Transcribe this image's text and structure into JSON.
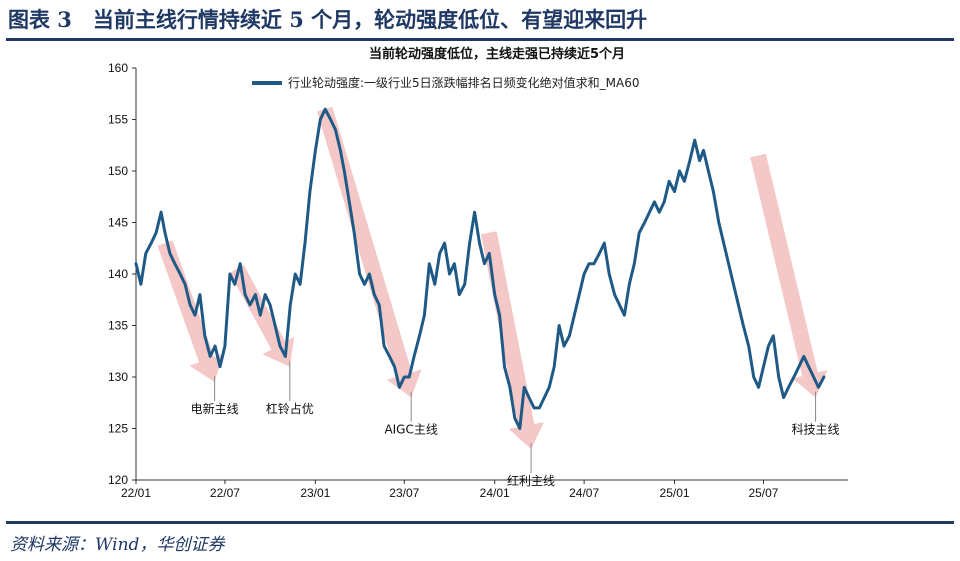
{
  "figure": {
    "title": "图表 3　当前主线行情持续近 5 个月，轮动强度低位、有望迎来回升",
    "source": "资料来源：Wind，华创证券"
  },
  "chart_data": {
    "type": "line",
    "title": "当前轮动强度低位，主线走强已持续近5个月",
    "xlabel": "",
    "ylabel": "",
    "ylim": [
      120,
      160
    ],
    "yticks": [
      120,
      125,
      130,
      135,
      140,
      145,
      150,
      155,
      160
    ],
    "xlim": [
      "2022-01",
      "2025-12"
    ],
    "xticks": [
      "22/01",
      "22/07",
      "23/01",
      "23/07",
      "24/01",
      "24/07",
      "25/01",
      "25/07"
    ],
    "grid": false,
    "legend": "top",
    "series": [
      {
        "name": "行业轮动强度:一级行业5日涨跌幅排名日频变化绝对值求和_MA60",
        "color": "#1f5a87",
        "x": [
          "2022-01-01",
          "2022-01-11",
          "2022-01-21",
          "2022-02-01",
          "2022-02-11",
          "2022-02-21",
          "2022-03-01",
          "2022-03-11",
          "2022-03-21",
          "2022-04-01",
          "2022-04-11",
          "2022-04-21",
          "2022-05-01",
          "2022-05-11",
          "2022-05-21",
          "2022-06-01",
          "2022-06-11",
          "2022-06-21",
          "2022-07-01",
          "2022-07-11",
          "2022-07-21",
          "2022-08-01",
          "2022-08-11",
          "2022-08-21",
          "2022-09-01",
          "2022-09-11",
          "2022-09-21",
          "2022-10-01",
          "2022-10-11",
          "2022-10-21",
          "2022-11-01",
          "2022-11-11",
          "2022-11-21",
          "2022-12-01",
          "2022-12-11",
          "2022-12-21",
          "2023-01-01",
          "2023-01-11",
          "2023-01-21",
          "2023-02-01",
          "2023-02-11",
          "2023-02-21",
          "2023-03-01",
          "2023-03-11",
          "2023-03-21",
          "2023-04-01",
          "2023-04-11",
          "2023-04-21",
          "2023-05-01",
          "2023-05-11",
          "2023-05-21",
          "2023-06-01",
          "2023-06-11",
          "2023-06-21",
          "2023-07-01",
          "2023-07-11",
          "2023-07-21",
          "2023-08-01",
          "2023-08-11",
          "2023-08-21",
          "2023-09-01",
          "2023-09-11",
          "2023-09-21",
          "2023-10-01",
          "2023-10-11",
          "2023-10-21",
          "2023-11-01",
          "2023-11-11",
          "2023-11-21",
          "2023-12-01",
          "2023-12-11",
          "2023-12-21",
          "2024-01-01",
          "2024-01-11",
          "2024-01-21",
          "2024-02-01",
          "2024-02-11",
          "2024-02-21",
          "2024-03-01",
          "2024-03-11",
          "2024-03-21",
          "2024-04-01",
          "2024-04-11",
          "2024-04-21",
          "2024-05-01",
          "2024-05-11",
          "2024-05-21",
          "2024-06-01",
          "2024-06-11",
          "2024-06-21",
          "2024-07-01",
          "2024-07-11",
          "2024-07-21",
          "2024-08-01",
          "2024-08-11",
          "2024-08-21",
          "2024-09-01",
          "2024-09-11",
          "2024-09-21",
          "2024-10-01",
          "2024-10-11",
          "2024-10-21",
          "2024-11-01",
          "2024-11-11",
          "2024-11-21",
          "2024-12-01",
          "2024-12-11",
          "2024-12-21",
          "2025-01-01",
          "2025-01-11",
          "2025-01-21",
          "2025-02-01",
          "2025-02-11",
          "2025-02-21",
          "2025-03-01",
          "2025-03-11",
          "2025-03-21",
          "2025-04-01",
          "2025-04-11",
          "2025-04-21",
          "2025-05-01",
          "2025-05-11",
          "2025-05-21",
          "2025-06-01",
          "2025-06-11",
          "2025-06-21",
          "2025-07-01",
          "2025-07-11",
          "2025-07-21",
          "2025-08-01",
          "2025-08-11",
          "2025-08-21",
          "2025-09-01",
          "2025-09-11",
          "2025-09-21",
          "2025-10-01",
          "2025-10-11",
          "2025-10-21",
          "2025-11-01"
        ],
        "values": [
          141,
          139,
          142,
          143,
          144,
          146,
          144,
          142,
          141,
          140,
          139,
          137,
          136,
          138,
          134,
          132,
          133,
          131,
          133,
          140,
          139,
          141,
          138,
          137,
          138,
          136,
          138,
          137,
          135,
          133,
          132,
          137,
          140,
          139,
          143,
          148,
          152,
          155,
          156,
          155,
          154,
          152,
          150,
          147,
          144,
          140,
          139,
          140,
          138,
          137,
          133,
          132,
          131,
          129,
          130,
          130,
          132,
          134,
          136,
          141,
          139,
          142,
          143,
          140,
          141,
          138,
          139,
          143,
          146,
          143,
          141,
          142,
          138,
          136,
          131,
          129,
          126,
          125,
          129,
          128,
          127,
          127,
          128,
          129,
          131,
          135,
          133,
          134,
          136,
          138,
          140,
          141,
          141,
          142,
          143,
          140,
          138,
          137,
          136,
          139,
          141,
          144,
          145,
          146,
          147,
          146,
          147,
          149,
          148,
          150,
          149,
          151,
          153,
          151,
          152,
          150,
          148,
          145,
          143,
          141,
          139,
          137,
          135,
          133,
          130,
          129,
          131,
          133,
          134,
          130,
          128,
          129,
          130,
          131,
          132,
          131,
          130,
          129,
          130
        ]
      }
    ],
    "annotations": [
      {
        "text": "电新主线",
        "arrow_from": [
          "2022-03-01",
          143
        ],
        "arrow_to": [
          "2022-06-10",
          129.5
        ],
        "label_at": [
          "2022-06-10",
          126.5
        ]
      },
      {
        "text": "杠铃占优",
        "arrow_from": [
          "2022-07-25",
          140.5
        ],
        "arrow_to": [
          "2022-11-10",
          131
        ],
        "label_at": [
          "2022-11-10",
          126.5
        ]
      },
      {
        "text": "AIGC主线",
        "arrow_from": [
          "2023-01-20",
          156
        ],
        "arrow_to": [
          "2023-07-15",
          128
        ],
        "label_at": [
          "2023-07-15",
          124.5
        ]
      },
      {
        "text": "红利主线",
        "arrow_from": [
          "2023-12-20",
          144
        ],
        "arrow_to": [
          "2024-03-15",
          123
        ],
        "label_at": [
          "2024-03-15",
          119.5
        ]
      },
      {
        "text": "科技主线",
        "arrow_from": [
          "2025-06-20",
          151.5
        ],
        "arrow_to": [
          "2025-10-15",
          128
        ],
        "label_at": [
          "2025-10-15",
          124.5
        ]
      }
    ]
  }
}
